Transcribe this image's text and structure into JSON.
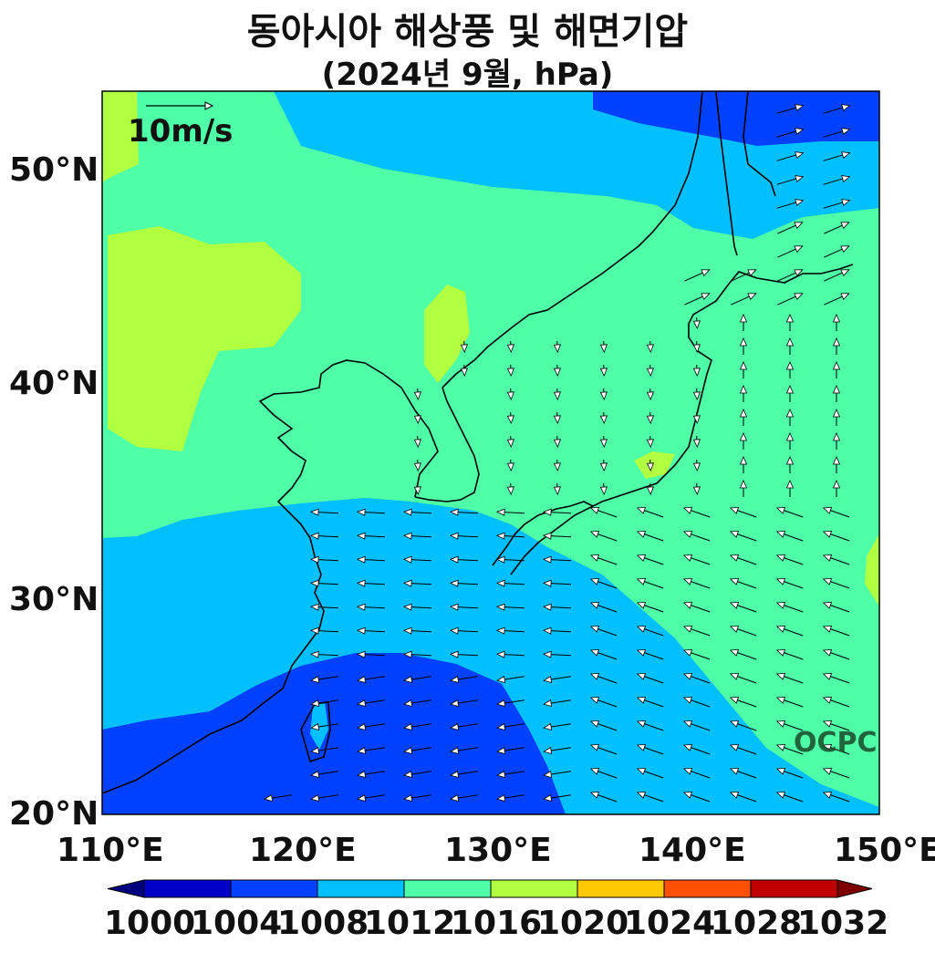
{
  "title": "동아시아 해상풍 및 해면기압",
  "subtitle": "(2024년 9월, hPa)",
  "map": {
    "lon_range": [
      110,
      150
    ],
    "lat_range": [
      20,
      53.5
    ],
    "lon_ticks": [
      "110°E",
      "120°E",
      "130°E",
      "140°E",
      "150°E"
    ],
    "lat_ticks": [
      "20°N",
      "30°N",
      "40°N",
      "50°N"
    ],
    "wind_reference_label": "10m/s",
    "watermark": "OCPC"
  },
  "colorbar": {
    "levels": [
      "1000",
      "1004",
      "1008",
      "1012",
      "1016",
      "1020",
      "1024",
      "1028",
      "1032"
    ],
    "colors": [
      "#00007f",
      "#0000c8",
      "#0040ff",
      "#00c0ff",
      "#4effa8",
      "#b0ff40",
      "#ffc800",
      "#ff5000",
      "#c00000",
      "#7f0000"
    ]
  }
}
